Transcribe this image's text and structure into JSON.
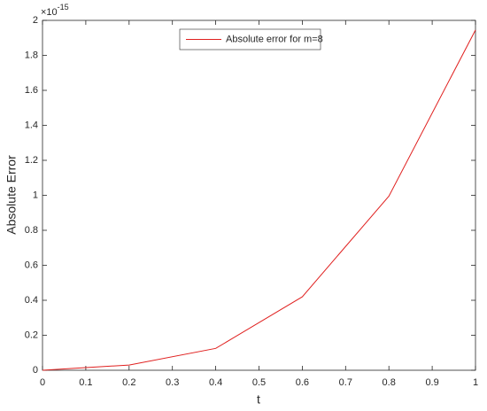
{
  "chart_data": {
    "type": "line",
    "x_label": "t",
    "y_label": "Absolute Error",
    "y_exponent_base": "×10",
    "y_exponent": "-15",
    "x": [
      0,
      0.1,
      0.2,
      0.4,
      0.6,
      0.8,
      1
    ],
    "series": [
      {
        "name": "Absolute error for m=8",
        "color": "#e0201f",
        "values": [
          0,
          0.015,
          0.03,
          0.125,
          0.42,
          0.995,
          1.945
        ]
      }
    ],
    "xlim": [
      0,
      1
    ],
    "xticks": [
      0,
      0.1,
      0.2,
      0.3,
      0.4,
      0.5,
      0.6,
      0.7,
      0.8,
      0.9,
      1
    ],
    "ylim": [
      0,
      2
    ],
    "yticks": [
      0,
      0.2,
      0.4,
      0.6,
      0.8,
      1,
      1.2,
      1.4,
      1.6,
      1.8,
      2
    ],
    "legend": "top-center"
  }
}
